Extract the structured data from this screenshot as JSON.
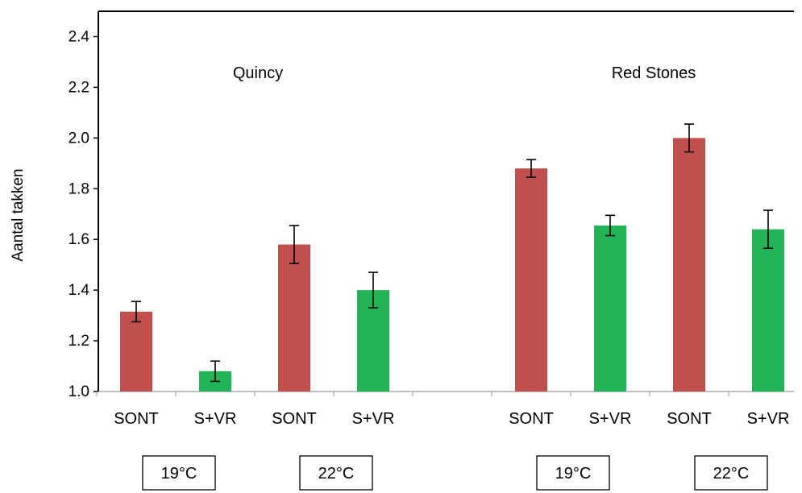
{
  "chart_data": {
    "type": "bar",
    "ylabel": "Aantal takken",
    "ylim": [
      1.0,
      2.5
    ],
    "yticks": [
      "1.0",
      "1.2",
      "1.4",
      "1.6",
      "1.8",
      "2.0",
      "2.2",
      "2.4"
    ],
    "groups": [
      {
        "label": "Quincy"
      },
      {
        "label": "Red Stones"
      }
    ],
    "temperature_labels": [
      "19°C",
      "22°C",
      "19°C",
      "22°C"
    ],
    "categories": [
      "SONT",
      "S+VR",
      "SONT",
      "S+VR",
      "",
      "SONT",
      "S+VR",
      "SONT",
      "S+VR"
    ],
    "values": [
      1.315,
      1.08,
      1.58,
      1.4,
      null,
      1.88,
      1.655,
      2.0,
      1.64
    ],
    "errors": [
      0.04,
      0.04,
      0.075,
      0.07,
      null,
      0.035,
      0.04,
      0.055,
      0.075
    ],
    "bar_colors": [
      "#c0504d",
      "#22b357",
      "#c0504d",
      "#22b357",
      null,
      "#c0504d",
      "#22b357",
      "#c0504d",
      "#22b357"
    ],
    "grid": false
  }
}
